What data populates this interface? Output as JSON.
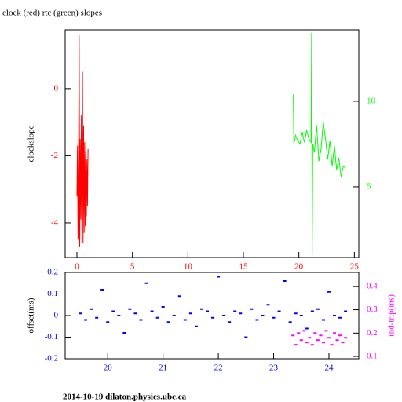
{
  "chart_data": [
    {
      "type": "line",
      "title": "clock (red) rtc (green) slopes",
      "ylabel": "clockslope",
      "xlim": [
        -1.06,
        25.4
      ],
      "xticks": [
        0,
        5,
        10,
        15,
        20,
        25
      ],
      "ylim": [
        -5.03,
        1.75
      ],
      "yticks": [
        -4,
        -2,
        0
      ],
      "y2lim": [
        0.87,
        14.17
      ],
      "y2ticks": [
        5,
        10
      ],
      "axis_colors": {
        "x": "#ff0000",
        "y": "#ff0000",
        "y2": "#00ff00",
        "ylabel": "#000000"
      },
      "series": [
        {
          "color": "#ff0000",
          "x": [
            0.0,
            0.05,
            0.1,
            0.15,
            0.2,
            0.25,
            0.3,
            0.35,
            0.4,
            0.45,
            0.5,
            0.55,
            0.6,
            0.65,
            0.7,
            0.75,
            0.8,
            0.85,
            0.9,
            0.95,
            1.0
          ],
          "values": [
            -3.2,
            -1.7,
            -4.5,
            -2.0,
            1.6,
            -4.7,
            -1.5,
            -3.9,
            -0.8,
            -4.6,
            0.5,
            -4.6,
            -1.1,
            -4.3,
            -1.6,
            -4.1,
            -1.9,
            -3.8,
            -2.1,
            -3.5,
            -1.8
          ]
        },
        {
          "color": "#00ff00",
          "axis": "y2",
          "x": [
            19.5,
            19.55,
            19.7,
            19.9,
            20.1,
            20.3,
            20.5,
            20.7,
            20.9,
            21.1,
            21.15,
            21.2,
            21.25,
            21.4,
            21.6,
            21.8,
            22.0,
            22.2,
            22.4,
            22.6,
            22.8,
            23.0,
            23.2,
            23.4,
            23.6,
            23.8,
            24.0,
            24.2
          ],
          "values": [
            10.4,
            7.5,
            8.0,
            7.7,
            7.5,
            8.2,
            7.6,
            8.3,
            7.8,
            7.6,
            14.0,
            1.0,
            7.5,
            7.0,
            8.6,
            6.5,
            7.2,
            8.8,
            7.8,
            6.6,
            7.7,
            6.2,
            7.4,
            6.0,
            6.7,
            5.6,
            6.2,
            6.1
          ]
        }
      ]
    },
    {
      "type": "scatter",
      "ylabel": "offset(ms)",
      "y2label": "rnd-trip(ms)",
      "xlim": [
        19.23,
        24.54
      ],
      "xticks": [
        20,
        21,
        22,
        23,
        24
      ],
      "ylim": [
        -0.2,
        0.2
      ],
      "yticks": [
        -0.2,
        -0.1,
        0,
        0.1,
        0.2
      ],
      "y2lim": [
        0.09,
        0.46
      ],
      "y2ticks": [
        0.1,
        0.2,
        0.3,
        0.4
      ],
      "axis_colors": {
        "x": "#0000ff",
        "y": "#0000ff",
        "y2": "#ff00ff",
        "ylabel": "#000000",
        "y2label": "#ff00ff"
      },
      "series": [
        {
          "color": "#0000ff",
          "x": [
            19.5,
            19.6,
            19.7,
            19.8,
            19.9,
            20.0,
            20.1,
            20.2,
            20.3,
            20.4,
            20.5,
            20.6,
            20.7,
            20.8,
            20.9,
            21.0,
            21.1,
            21.2,
            21.3,
            21.4,
            21.5,
            21.6,
            21.7,
            21.8,
            21.9,
            22.0,
            22.1,
            22.2,
            22.3,
            22.4,
            22.5,
            22.6,
            22.7,
            22.8,
            22.9,
            23.0,
            23.1,
            23.2,
            23.3,
            23.4,
            23.5,
            23.6,
            23.7,
            23.8,
            23.9,
            24.0,
            24.1,
            24.2,
            24.3
          ],
          "values": [
            0.01,
            -0.02,
            0.03,
            -0.01,
            0.12,
            -0.03,
            0.02,
            0.0,
            -0.08,
            0.03,
            0.01,
            -0.02,
            0.15,
            0.02,
            -0.01,
            0.04,
            -0.03,
            0.0,
            0.09,
            -0.02,
            0.01,
            -0.05,
            0.03,
            0.02,
            -0.01,
            0.18,
            0.0,
            -0.03,
            0.02,
            0.01,
            -0.1,
            0.03,
            -0.02,
            0.0,
            0.05,
            -0.01,
            0.02,
            0.16,
            -0.03,
            0.01,
            0.0,
            -0.06,
            0.02,
            0.03,
            -0.02,
            0.11,
            0.0,
            -0.01,
            0.02
          ]
        },
        {
          "color": "#ff00ff",
          "axis": "y2",
          "x": [
            23.35,
            23.4,
            23.45,
            23.5,
            23.55,
            23.6,
            23.65,
            23.7,
            23.75,
            23.8,
            23.85,
            23.9,
            23.95,
            24.0,
            24.05,
            24.1,
            24.15,
            24.2,
            24.25,
            24.3
          ],
          "values": [
            0.19,
            0.15,
            0.2,
            0.17,
            0.21,
            0.16,
            0.18,
            0.15,
            0.2,
            0.17,
            0.19,
            0.16,
            0.21,
            0.18,
            0.15,
            0.2,
            0.17,
            0.19,
            0.16,
            0.18
          ]
        }
      ]
    }
  ],
  "footer": "2014-10-19  dilaton.physics.ubc.ca"
}
